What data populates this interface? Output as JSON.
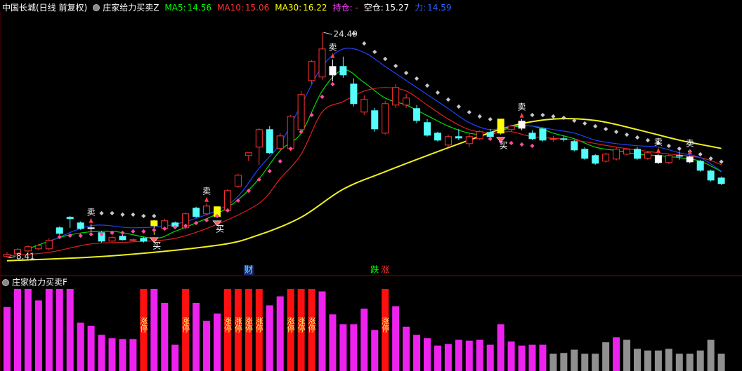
{
  "header": {
    "symbol": "中国长城(日线 前复权)",
    "indicator": "庄家给力买卖Z"
  },
  "chart_data": [
    {
      "type": "candlestick",
      "ylim": [
        7.3,
        25.8
      ],
      "open": [
        8.51,
        8.71,
        8.91,
        9.06,
        9.06,
        10.56,
        11.31,
        10.91,
        10.56,
        10.21,
        9.61,
        9.96,
        9.66,
        9.81,
        10.71,
        10.51,
        10.91,
        10.56,
        11.96,
        11.56,
        11.36,
        11.81,
        13.51,
        15.71,
        16.31,
        17.56,
        16.21,
        16.21,
        17.56,
        21.06,
        21.31,
        22.06,
        22.06,
        20.81,
        18.81,
        18.91,
        17.31,
        19.31,
        19.31,
        19.06,
        18.06,
        17.31,
        16.46,
        17.06,
        16.56,
        16.91,
        17.36,
        17.31,
        17.56,
        18.16,
        17.31,
        17.61,
        16.86,
        16.91,
        16.71,
        16.16,
        15.71,
        15.31,
        15.46,
        15.81,
        16.16,
        15.51,
        15.71,
        15.21,
        15.71,
        15.61,
        15.31,
        14.61,
        14.11
      ],
      "high": [
        8.81,
        9.11,
        9.31,
        9.41,
        9.81,
        10.66,
        11.41,
        11.01,
        10.81,
        10.31,
        9.96,
        10.06,
        9.81,
        9.91,
        11.11,
        11.21,
        11.01,
        11.66,
        12.06,
        12.31,
        12.06,
        13.31,
        14.41,
        15.91,
        17.66,
        17.81,
        17.31,
        18.61,
        20.31,
        22.51,
        24.49,
        22.56,
        22.76,
        21.21,
        20.01,
        19.11,
        19.61,
        20.81,
        20.11,
        19.31,
        18.31,
        17.41,
        17.21,
        17.61,
        17.31,
        17.51,
        17.61,
        18.31,
        17.91,
        18.31,
        17.51,
        17.71,
        17.11,
        17.11,
        16.81,
        16.31,
        15.81,
        15.91,
        16.31,
        16.21,
        16.31,
        16.01,
        15.81,
        15.81,
        16.01,
        15.71,
        15.41,
        14.71,
        14.21
      ],
      "low": [
        8.41,
        8.61,
        8.81,
        8.96,
        8.96,
        10.06,
        10.56,
        10.41,
        10.31,
        9.51,
        9.56,
        9.66,
        9.56,
        9.51,
        10.06,
        10.41,
        10.61,
        10.46,
        11.26,
        11.46,
        11.26,
        11.71,
        13.41,
        15.31,
        15.06,
        15.81,
        16.01,
        16.11,
        17.31,
        20.81,
        21.11,
        21.01,
        21.26,
        19.21,
        18.61,
        17.41,
        17.21,
        19.11,
        19.11,
        18.01,
        17.06,
        16.71,
        16.31,
        16.81,
        16.31,
        16.81,
        16.81,
        17.21,
        17.41,
        17.51,
        16.81,
        16.71,
        16.71,
        16.71,
        16.01,
        15.41,
        15.06,
        15.21,
        15.36,
        15.71,
        15.41,
        15.41,
        15.11,
        15.11,
        15.41,
        15.16,
        14.56,
        13.86,
        13.61
      ],
      "close": [
        8.66,
        9.01,
        9.21,
        9.31,
        9.66,
        10.16,
        11.21,
        10.51,
        10.56,
        9.61,
        9.86,
        9.71,
        9.71,
        9.61,
        11.06,
        11.06,
        10.66,
        11.56,
        11.36,
        12.11,
        12.06,
        13.21,
        14.31,
        15.91,
        17.56,
        15.91,
        17.11,
        18.51,
        20.06,
        22.41,
        23.31,
        21.46,
        21.46,
        19.41,
        19.71,
        17.61,
        19.41,
        20.56,
        19.81,
        18.21,
        17.16,
        16.81,
        17.06,
        16.96,
        17.06,
        17.41,
        17.06,
        18.31,
        17.81,
        17.66,
        16.91,
        16.81,
        16.91,
        16.86,
        16.11,
        15.51,
        15.16,
        15.81,
        16.16,
        16.16,
        15.51,
        15.91,
        15.21,
        15.71,
        15.66,
        15.26,
        14.66,
        13.96,
        13.71
      ],
      "colors": [
        "#ff3232",
        "#ff3232",
        "#ff3232",
        "#ff3232",
        "#ff3232",
        "#54fcfc",
        "#54fcfc",
        "#54fcfc",
        "#ffffff",
        "#54fcfc",
        "#ff3232",
        "#54fcfc",
        "#ff3232",
        "#54fcfc",
        "#ffff00",
        "#ff3232",
        "#54fcfc",
        "#ff3232",
        "#54fcfc",
        "#ff3232",
        "#ffff00",
        "#ff3232",
        "#ff3232",
        "#ff3232",
        "#ff3232",
        "#54fcfc",
        "#ff3232",
        "#ff3232",
        "#ff3232",
        "#ff3232",
        "#ff3232",
        "#ffffff",
        "#54fcfc",
        "#54fcfc",
        "#ff3232",
        "#54fcfc",
        "#ff3232",
        "#ff3232",
        "#ff3232",
        "#54fcfc",
        "#54fcfc",
        "#54fcfc",
        "#ff3232",
        "#54fcfc",
        "#ff3232",
        "#ff3232",
        "#54fcfc",
        "#ffff00",
        "#ff3232",
        "#ffffff",
        "#54fcfc",
        "#54fcfc",
        "#ff3232",
        "#54fcfc",
        "#54fcfc",
        "#54fcfc",
        "#54fcfc",
        "#ff3232",
        "#ff3232",
        "#ff3232",
        "#54fcfc",
        "#ff3232",
        "#ffffff",
        "#ff3232",
        "#54fcfc",
        "#ffffff",
        "#54fcfc",
        "#54fcfc",
        "#54fcfc"
      ],
      "series": [
        {
          "name": "MA5:",
          "value": 14.56,
          "style": "line",
          "color": "#00e000",
          "label_color": "#00ff00",
          "x": [
            2,
            6,
            10,
            14,
            16,
            18,
            20,
            22,
            24,
            26,
            28,
            30,
            32,
            34,
            36,
            38,
            40,
            42,
            44,
            46,
            48,
            50,
            52,
            54,
            56,
            58,
            60,
            62,
            64,
            66,
            68
          ],
          "values": [
            9.06,
            10.06,
            10.31,
            9.81,
            10.31,
            10.91,
            11.56,
            12.56,
            14.06,
            16.06,
            17.31,
            20.31,
            21.81,
            20.91,
            19.81,
            19.31,
            18.56,
            17.81,
            17.31,
            17.21,
            17.71,
            17.81,
            17.31,
            16.91,
            16.31,
            16.06,
            15.81,
            15.71,
            15.56,
            15.31,
            14.56
          ]
        },
        {
          "name": "MA10:",
          "value": 15.06,
          "style": "line",
          "color": "#e02020",
          "label_color": "#ff3232",
          "x": [
            0,
            4,
            8,
            12,
            16,
            20,
            24,
            26,
            28,
            30,
            32,
            34,
            36,
            38,
            40,
            42,
            44,
            46,
            48,
            50,
            54,
            58,
            62,
            66,
            68
          ],
          "values": [
            8.56,
            8.81,
            9.41,
            9.56,
            9.81,
            10.81,
            12.31,
            14.06,
            15.81,
            18.81,
            19.56,
            20.31,
            20.56,
            20.31,
            19.31,
            18.31,
            17.56,
            17.31,
            17.41,
            17.06,
            16.81,
            16.31,
            15.91,
            15.56,
            15.06
          ]
        },
        {
          "name": "MA30:",
          "value": 16.22,
          "style": "line",
          "color": "#f0f020",
          "label_color": "#ffff00",
          "x": [
            0,
            10,
            20,
            24,
            28,
            32,
            36,
            40,
            44,
            48,
            52,
            56,
            60,
            64,
            68
          ],
          "values": [
            8.21,
            8.56,
            9.31,
            10.06,
            11.31,
            13.31,
            14.56,
            15.71,
            16.81,
            17.81,
            18.31,
            18.21,
            17.56,
            16.81,
            16.22
          ]
        },
        {
          "name": "持仓: -",
          "style": "dots",
          "color": "#ff4aa0",
          "label_color": "#ff40ff",
          "x": [
            5,
            6,
            7,
            8,
            9,
            10,
            11,
            12,
            13,
            14,
            15,
            16,
            17,
            18,
            19,
            20,
            21,
            22,
            23,
            24,
            25,
            26,
            27,
            28,
            29,
            30,
            31,
            46,
            47,
            48,
            49,
            50
          ],
          "values": [
            9.9,
            10.0,
            10.0,
            10.1,
            10.1,
            10.2,
            10.2,
            10.3,
            10.3,
            10.4,
            10.5,
            10.6,
            10.7,
            10.9,
            11.1,
            11.4,
            11.8,
            12.5,
            13.2,
            14.0,
            14.6,
            15.3,
            16.2,
            17.4,
            18.6,
            19.9,
            20.8,
            16.9,
            16.7,
            16.6,
            16.5,
            16.4
          ]
        },
        {
          "name": "空仓:",
          "value": 15.27,
          "style": "dots",
          "color": "#c8c8c8",
          "label_color": "#ffffff",
          "x": [
            9,
            10,
            11,
            12,
            13,
            14,
            33,
            34,
            35,
            36,
            37,
            38,
            39,
            40,
            41,
            42,
            43,
            44,
            45,
            46,
            50,
            51,
            52,
            53,
            54,
            55,
            56,
            57,
            58,
            59,
            60,
            61,
            62,
            63,
            64,
            65,
            66,
            67,
            68
          ],
          "values": [
            11.6,
            11.6,
            11.5,
            11.5,
            11.4,
            11.4,
            24.4,
            23.7,
            23.1,
            22.6,
            22.1,
            21.6,
            21.2,
            20.7,
            20.2,
            19.7,
            19.2,
            18.8,
            18.5,
            18.3,
            18.6,
            18.6,
            18.5,
            18.4,
            18.2,
            18.0,
            17.8,
            17.6,
            17.4,
            17.2,
            17.0,
            16.8,
            16.6,
            16.4,
            16.2,
            16.0,
            15.8,
            15.5,
            15.27
          ]
        },
        {
          "name": "力:",
          "value": 14.59,
          "style": "line",
          "color": "#2040ff",
          "label_color": "#3060ff",
          "x": [
            4,
            8,
            12,
            16,
            20,
            22,
            24,
            26,
            28,
            30,
            32,
            34,
            36,
            38,
            40,
            42,
            44,
            46,
            48,
            50,
            52,
            54,
            56,
            58,
            60,
            62,
            64,
            66,
            68
          ],
          "values": [
            9.56,
            10.71,
            10.56,
            10.81,
            11.81,
            12.81,
            14.81,
            16.56,
            19.31,
            22.06,
            23.31,
            23.06,
            22.06,
            21.06,
            20.06,
            19.06,
            18.06,
            17.56,
            17.81,
            17.81,
            17.56,
            17.31,
            16.81,
            16.56,
            16.41,
            16.31,
            15.91,
            15.56,
            14.59
          ]
        }
      ],
      "annotations": [
        {
          "text": "卖",
          "at": 8,
          "pos": "above"
        },
        {
          "text": "卖",
          "at": 19,
          "pos": "above"
        },
        {
          "text": "卖",
          "at": 31,
          "pos": "above"
        },
        {
          "text": "卖",
          "at": 49,
          "pos": "above"
        },
        {
          "text": "卖",
          "at": 62,
          "pos": "above"
        },
        {
          "text": "卖",
          "at": 65,
          "pos": "above"
        },
        {
          "text": "买",
          "at": 14,
          "pos": "below"
        },
        {
          "text": "买",
          "at": 20,
          "pos": "below"
        },
        {
          "text": "买",
          "at": 47,
          "pos": "below"
        },
        {
          "text": "财",
          "at": 23,
          "pos": "bottom",
          "color": "#54fcfc"
        },
        {
          "text": "跌",
          "at": 35,
          "pos": "bottom",
          "color": "#00ff00"
        },
        {
          "text": "涨",
          "at": 36,
          "pos": "bottom",
          "color": "#ff3232"
        }
      ]
    },
    {
      "type": "bar",
      "title": "庄家给力买卖F",
      "ylim": [
        0,
        100
      ],
      "values": [
        78,
        100,
        100,
        86,
        100,
        100,
        100,
        59,
        55,
        44,
        40,
        39,
        39,
        100,
        100,
        83,
        32,
        100,
        83,
        61,
        70,
        100,
        100,
        100,
        100,
        80,
        91,
        100,
        100,
        100,
        97,
        69,
        57,
        57,
        76,
        50,
        100,
        79,
        54,
        44,
        40,
        31,
        33,
        38,
        37,
        38,
        32,
        57,
        36,
        31,
        32,
        32,
        21,
        22,
        26,
        21,
        21,
        35,
        41,
        38,
        27,
        25,
        25,
        27,
        21,
        21,
        25,
        38,
        21
      ],
      "colors": [
        "#ee22ee",
        "#ee22ee",
        "#ee22ee",
        "#ee22ee",
        "#ee22ee",
        "#ee22ee",
        "#ee22ee",
        "#ee22ee",
        "#ee22ee",
        "#ee22ee",
        "#ee22ee",
        "#ee22ee",
        "#ee22ee",
        "#ff1010",
        "#ee22ee",
        "#ee22ee",
        "#ee22ee",
        "#ff1010",
        "#ee22ee",
        "#ee22ee",
        "#ee22ee",
        "#ff1010",
        "#ff1010",
        "#ff1010",
        "#ff1010",
        "#ee22ee",
        "#ee22ee",
        "#ff1010",
        "#ff1010",
        "#ff1010",
        "#ee22ee",
        "#ee22ee",
        "#ee22ee",
        "#ee22ee",
        "#ee22ee",
        "#ee22ee",
        "#ff1010",
        "#ee22ee",
        "#ee22ee",
        "#ee22ee",
        "#ee22ee",
        "#ee22ee",
        "#ee22ee",
        "#ee22ee",
        "#ee22ee",
        "#ee22ee",
        "#ee22ee",
        "#ee22ee",
        "#ee22ee",
        "#ee22ee",
        "#ee22ee",
        "#ee22ee",
        "#909090",
        "#909090",
        "#909090",
        "#909090",
        "#909090",
        "#909090",
        "#ee22ee",
        "#909090",
        "#909090",
        "#909090",
        "#909090",
        "#909090",
        "#909090",
        "#909090",
        "#909090",
        "#909090",
        "#909090"
      ],
      "labels": [
        null,
        null,
        null,
        null,
        null,
        null,
        null,
        null,
        null,
        null,
        null,
        null,
        null,
        "涨停",
        null,
        null,
        null,
        "涨停",
        null,
        null,
        null,
        "涨停",
        "涨停",
        "涨停",
        "涨停",
        null,
        null,
        "涨停",
        "涨停",
        "涨停",
        null,
        null,
        null,
        null,
        null,
        null,
        "涨停",
        null,
        null,
        null,
        null,
        null,
        null,
        null,
        null,
        null,
        null,
        null,
        null,
        null,
        null,
        null,
        null,
        null,
        null,
        null,
        null,
        null,
        null,
        null,
        null,
        null,
        null,
        null,
        null,
        null,
        null,
        null,
        null
      ]
    }
  ]
}
